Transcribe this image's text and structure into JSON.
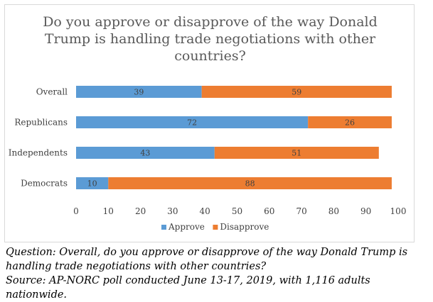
{
  "chart_data": {
    "type": "bar",
    "orientation": "horizontal",
    "stacked": true,
    "title_lines": [
      "Do you approve or disapprove of the way Donald",
      "Trump is handling trade negotiations with other",
      "countries?"
    ],
    "categories": [
      "Overall",
      "Republicans",
      "Independents",
      "Democrats"
    ],
    "series": [
      {
        "name": "Approve",
        "values": [
          39,
          72,
          43,
          10
        ],
        "color": "#5b9bd5"
      },
      {
        "name": "Disapprove",
        "values": [
          59,
          26,
          51,
          88
        ],
        "color": "#ed7d31"
      }
    ],
    "xlim": [
      0,
      100
    ],
    "xticks": [
      "0",
      "10",
      "20",
      "30",
      "40",
      "50",
      "60",
      "70",
      "80",
      "90",
      "100"
    ],
    "data_labels": true,
    "grid": false,
    "legend_position": "bottom"
  },
  "caption": {
    "question": "Question: Overall, do you approve or disapprove of the way Donald Trump is handling trade negotiations with other countries?",
    "source": "Source: AP-NORC poll conducted June 13-17, 2019, with 1,116 adults nationwide."
  }
}
